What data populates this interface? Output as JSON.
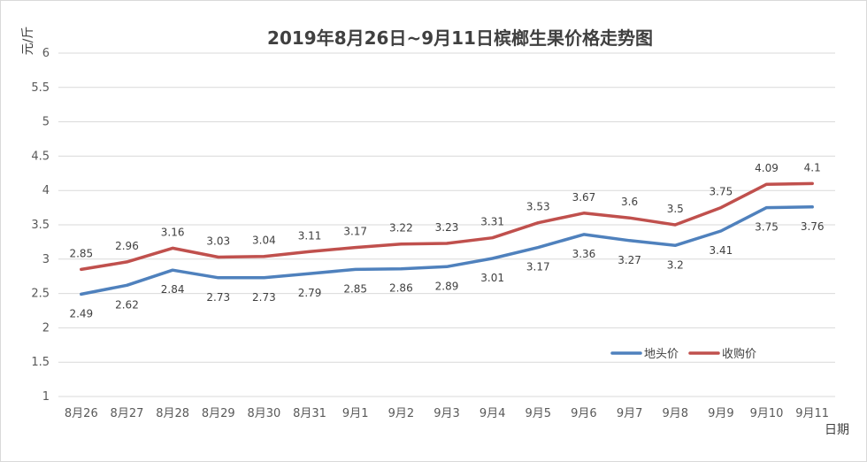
{
  "chart_data": {
    "type": "line",
    "title": "2019年8月26日~9月11日槟榔生果价格走势图",
    "xlabel": "日期",
    "ylabel": "元/斤",
    "ylim": [
      1,
      6
    ],
    "yticks": [
      "1",
      "1.5",
      "2",
      "2.5",
      "3",
      "3.5",
      "4",
      "4.5",
      "5",
      "5.5",
      "6"
    ],
    "categories": [
      "8月26",
      "8月27",
      "8月28",
      "8月29",
      "8月30",
      "8月31",
      "9月1",
      "9月2",
      "9月3",
      "9月4",
      "9月5",
      "9月6",
      "9月7",
      "9月8",
      "9月9",
      "9月10",
      "9月11"
    ],
    "grid": true,
    "legend_position": "bottom-right",
    "series": [
      {
        "name": "地头价",
        "color": "#4F81BD",
        "values": [
          2.49,
          2.62,
          2.84,
          2.73,
          2.73,
          2.79,
          2.85,
          2.86,
          2.89,
          3.01,
          3.17,
          3.36,
          3.27,
          3.2,
          3.41,
          3.75,
          3.76
        ],
        "labels": [
          "2.49",
          "2.62",
          "2.84",
          "2.73",
          "2.73",
          "2.79",
          "2.85",
          "2.86",
          "2.89",
          "3.01",
          "3.17",
          "3.36",
          "3.27",
          "3.2",
          "3.41",
          "3.75",
          "3.76"
        ]
      },
      {
        "name": "收购价",
        "color": "#C0504D",
        "values": [
          2.85,
          2.96,
          3.16,
          3.03,
          3.04,
          3.11,
          3.17,
          3.22,
          3.23,
          3.31,
          3.53,
          3.67,
          3.6,
          3.5,
          3.75,
          4.09,
          4.1
        ],
        "labels": [
          "2.85",
          "2.96",
          "3.16",
          "3.03",
          "3.04",
          "3.11",
          "3.17",
          "3.22",
          "3.23",
          "3.31",
          "3.53",
          "3.67",
          "3.6",
          "3.5",
          "3.75",
          "4.09",
          "4.1"
        ]
      }
    ]
  }
}
